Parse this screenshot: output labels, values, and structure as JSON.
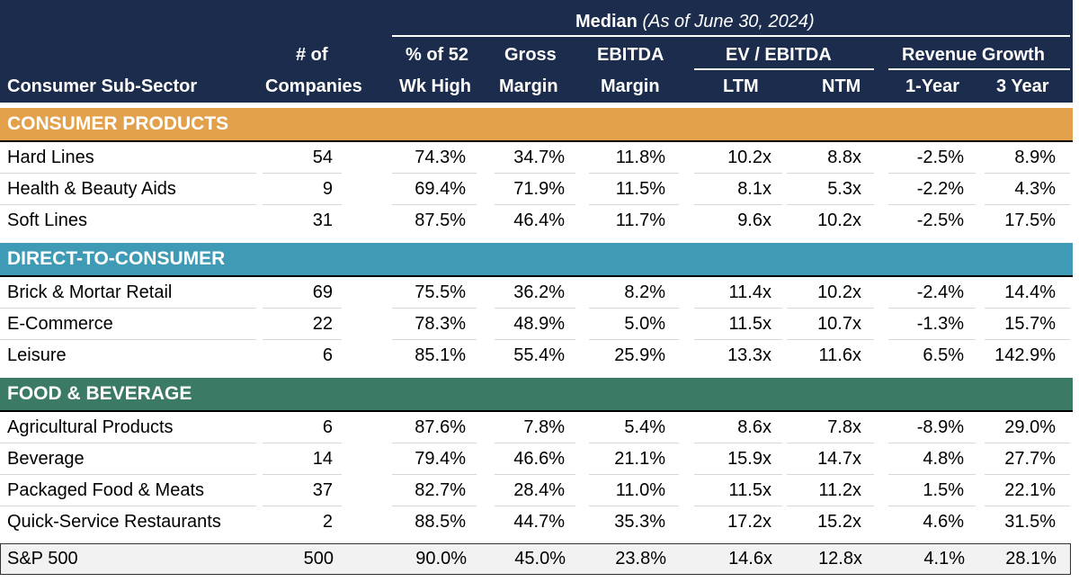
{
  "header": {
    "median_label": "Median",
    "median_note": "(As of June 30, 2024)",
    "col_sub_sector": "Consumer Sub-Sector",
    "col_companies_top": "# of",
    "col_companies_bottom": "Companies",
    "col_pct52_top": "% of 52",
    "col_pct52_bottom": "Wk High",
    "col_gross_top": "Gross",
    "col_gross_bottom": "Margin",
    "col_ebitda_top": "EBITDA",
    "col_ebitda_bottom": "Margin",
    "col_ev_group": "EV / EBITDA",
    "col_ev_ltm": "LTM",
    "col_ev_ntm": "NTM",
    "col_rev_group": "Revenue Growth",
    "col_rev_1y": "1-Year",
    "col_rev_3y": "3 Year"
  },
  "sections": [
    {
      "title": "CONSUMER PRODUCTS",
      "color": "#e3a04b",
      "rows": [
        {
          "name": "Hard Lines",
          "companies": "54",
          "pct52": "74.3%",
          "gross": "34.7%",
          "ebitda": "11.8%",
          "ltm": "10.2x",
          "ntm": "8.8x",
          "rev1": "-2.5%",
          "rev3": "8.9%"
        },
        {
          "name": "Health & Beauty Aids",
          "companies": "9",
          "pct52": "69.4%",
          "gross": "71.9%",
          "ebitda": "11.5%",
          "ltm": "8.1x",
          "ntm": "5.3x",
          "rev1": "-2.2%",
          "rev3": "4.3%"
        },
        {
          "name": "Soft Lines",
          "companies": "31",
          "pct52": "87.5%",
          "gross": "46.4%",
          "ebitda": "11.7%",
          "ltm": "9.6x",
          "ntm": "10.2x",
          "rev1": "-2.5%",
          "rev3": "17.5%"
        }
      ]
    },
    {
      "title": "DIRECT-TO-CONSUMER",
      "color": "#3e9ab5",
      "rows": [
        {
          "name": "Brick & Mortar Retail",
          "companies": "69",
          "pct52": "75.5%",
          "gross": "36.2%",
          "ebitda": "8.2%",
          "ltm": "11.4x",
          "ntm": "10.2x",
          "rev1": "-2.4%",
          "rev3": "14.4%"
        },
        {
          "name": "E-Commerce",
          "companies": "22",
          "pct52": "78.3%",
          "gross": "48.9%",
          "ebitda": "5.0%",
          "ltm": "11.5x",
          "ntm": "10.7x",
          "rev1": "-1.3%",
          "rev3": "15.7%"
        },
        {
          "name": "Leisure",
          "companies": "6",
          "pct52": "85.1%",
          "gross": "55.4%",
          "ebitda": "25.9%",
          "ltm": "13.3x",
          "ntm": "11.6x",
          "rev1": "6.5%",
          "rev3": "142.9%"
        }
      ]
    },
    {
      "title": "FOOD & BEVERAGE",
      "color": "#3b7a64",
      "rows": [
        {
          "name": "Agricultural Products",
          "companies": "6",
          "pct52": "87.6%",
          "gross": "7.8%",
          "ebitda": "5.4%",
          "ltm": "8.6x",
          "ntm": "7.8x",
          "rev1": "-8.9%",
          "rev3": "29.0%"
        },
        {
          "name": "Beverage",
          "companies": "14",
          "pct52": "79.4%",
          "gross": "46.6%",
          "ebitda": "21.1%",
          "ltm": "15.9x",
          "ntm": "14.7x",
          "rev1": "4.8%",
          "rev3": "27.7%"
        },
        {
          "name": "Packaged Food & Meats",
          "companies": "37",
          "pct52": "82.7%",
          "gross": "28.4%",
          "ebitda": "11.0%",
          "ltm": "11.5x",
          "ntm": "11.2x",
          "rev1": "1.5%",
          "rev3": "22.1%"
        },
        {
          "name": "Quick-Service Restaurants",
          "companies": "2",
          "pct52": "88.5%",
          "gross": "44.7%",
          "ebitda": "35.3%",
          "ltm": "17.2x",
          "ntm": "15.2x",
          "rev1": "4.6%",
          "rev3": "31.5%"
        }
      ]
    }
  ],
  "benchmark": {
    "name": "S&P 500",
    "companies": "500",
    "pct52": "90.0%",
    "gross": "45.0%",
    "ebitda": "23.8%",
    "ltm": "14.6x",
    "ntm": "12.8x",
    "rev1": "4.1%",
    "rev3": "28.1%"
  }
}
